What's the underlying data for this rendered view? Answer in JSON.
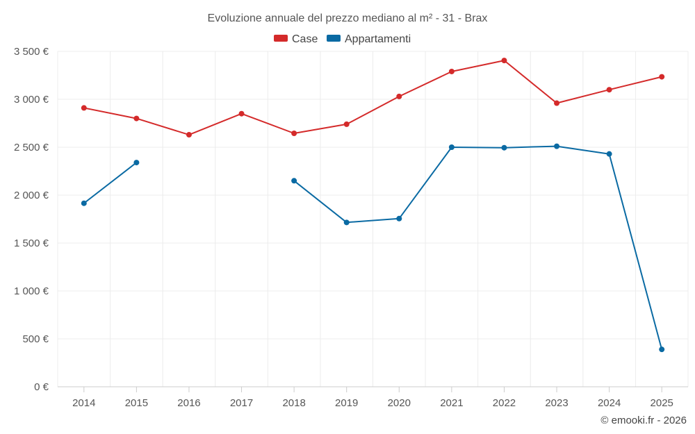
{
  "chart_data": {
    "type": "line",
    "title": "Evoluzione annuale del prezzo mediano al m² - 31 - Brax",
    "categories": [
      "2014",
      "2015",
      "2016",
      "2017",
      "2018",
      "2019",
      "2020",
      "2021",
      "2022",
      "2023",
      "2024",
      "2025"
    ],
    "ylim": [
      0,
      3500
    ],
    "yticks": [
      0,
      500,
      1000,
      1500,
      2000,
      2500,
      3000,
      3500
    ],
    "ytick_labels": [
      "0 €",
      "500 €",
      "1 000 €",
      "1 500 €",
      "2 000 €",
      "2 500 €",
      "3 000 €",
      "3 500 €"
    ],
    "legend_position": "top-center",
    "grid": true,
    "series": [
      {
        "name": "Case",
        "color": "#d42a2a",
        "values": [
          2910,
          2800,
          2630,
          2850,
          2645,
          2740,
          3030,
          3290,
          3405,
          2960,
          3100,
          3235
        ]
      },
      {
        "name": "Appartamenti",
        "color": "#0a6aa3",
        "values": [
          1915,
          2340,
          null,
          null,
          2150,
          1715,
          1755,
          2500,
          2495,
          2510,
          2430,
          390
        ]
      }
    ]
  },
  "credit": "© emooki.fr - 2026"
}
